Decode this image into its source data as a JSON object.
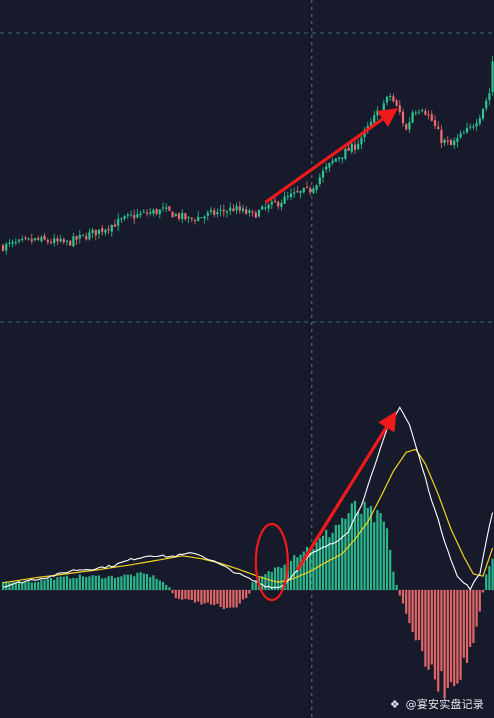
{
  "watermark": {
    "text": "@宴安实盘记录",
    "icon": "diamond-logo-icon"
  },
  "colors": {
    "background": "#171a2b",
    "up": "#2cc593",
    "down": "#f26d6d",
    "dif_line": "#ffffff",
    "dea_line": "#f2d21b",
    "annotation": "#f01a1a",
    "guide": "#7f8aa0",
    "grid_dashed": "#2f7f86"
  },
  "chart_data": [
    {
      "type": "candlestick",
      "panel": "price",
      "grid": false,
      "trend_close": [
        [
          0,
          10.0
        ],
        [
          10,
          10.4
        ],
        [
          20,
          10.2
        ],
        [
          30,
          11.0
        ],
        [
          40,
          11.9
        ],
        [
          50,
          12.3
        ],
        [
          58,
          11.7
        ],
        [
          66,
          12.1
        ],
        [
          72,
          12.4
        ],
        [
          78,
          12.0
        ],
        [
          84,
          12.6
        ],
        [
          90,
          13.2
        ],
        [
          96,
          13.6
        ],
        [
          100,
          14.7
        ],
        [
          104,
          15.6
        ],
        [
          110,
          16.4
        ],
        [
          114,
          17.5
        ],
        [
          118,
          18.8
        ],
        [
          121,
          19.6
        ],
        [
          124,
          18.5
        ],
        [
          126,
          17.4
        ],
        [
          128,
          18.6
        ],
        [
          131,
          18.9
        ],
        [
          134,
          18.0
        ],
        [
          137,
          16.8
        ],
        [
          140,
          16.4
        ],
        [
          143,
          17.0
        ],
        [
          146,
          17.5
        ],
        [
          149,
          18.4
        ],
        [
          152,
          19.8
        ],
        [
          153,
          21.8
        ]
      ],
      "crosshair_x": 96.5,
      "annotation": {
        "type": "arrow",
        "from": [
          82,
          12.8
        ],
        "to": [
          122,
          18.6
        ]
      }
    },
    {
      "type": "macd",
      "panel": "indicator",
      "zero_line": 0,
      "dif": [
        [
          0,
          0.12
        ],
        [
          8,
          0.33
        ],
        [
          14,
          0.44
        ],
        [
          22,
          0.68
        ],
        [
          28,
          0.73
        ],
        [
          34,
          0.83
        ],
        [
          40,
          1.05
        ],
        [
          46,
          1.2
        ],
        [
          52,
          1.15
        ],
        [
          60,
          1.28
        ],
        [
          66,
          0.98
        ],
        [
          72,
          0.64
        ],
        [
          78,
          0.33
        ],
        [
          82,
          0.14
        ],
        [
          86,
          0.08
        ],
        [
          88,
          0.2
        ],
        [
          92,
          0.7
        ],
        [
          96,
          1.22
        ],
        [
          100,
          1.45
        ],
        [
          104,
          1.66
        ],
        [
          108,
          2.04
        ],
        [
          112,
          2.95
        ],
        [
          116,
          4.2
        ],
        [
          120,
          5.55
        ],
        [
          124,
          6.3
        ],
        [
          127,
          5.7
        ],
        [
          130,
          4.6
        ],
        [
          134,
          3.1
        ],
        [
          138,
          1.7
        ],
        [
          142,
          0.45
        ],
        [
          146,
          0.05
        ],
        [
          149,
          0.55
        ],
        [
          151,
          1.7
        ],
        [
          153,
          2.7
        ]
      ],
      "dea": [
        [
          0,
          0.25
        ],
        [
          10,
          0.42
        ],
        [
          20,
          0.56
        ],
        [
          30,
          0.7
        ],
        [
          40,
          0.87
        ],
        [
          50,
          1.06
        ],
        [
          56,
          1.18
        ],
        [
          62,
          1.08
        ],
        [
          68,
          0.92
        ],
        [
          74,
          0.7
        ],
        [
          80,
          0.46
        ],
        [
          84,
          0.32
        ],
        [
          86,
          0.27
        ],
        [
          90,
          0.36
        ],
        [
          96,
          0.64
        ],
        [
          100,
          0.9
        ],
        [
          106,
          1.25
        ],
        [
          110,
          1.75
        ],
        [
          114,
          2.35
        ],
        [
          118,
          3.2
        ],
        [
          122,
          4.1
        ],
        [
          126,
          4.75
        ],
        [
          129,
          4.85
        ],
        [
          132,
          4.35
        ],
        [
          136,
          3.3
        ],
        [
          140,
          2.1
        ],
        [
          144,
          1.15
        ],
        [
          147,
          0.55
        ],
        [
          150,
          0.48
        ],
        [
          153,
          1.45
        ]
      ],
      "histogram_envelope": [
        [
          0,
          0.3
        ],
        [
          10,
          0.3
        ],
        [
          14,
          0.4
        ],
        [
          24,
          0.5
        ],
        [
          34,
          0.48
        ],
        [
          44,
          0.58
        ],
        [
          48,
          0.45
        ],
        [
          52,
          0.1
        ],
        [
          54,
          -0.3
        ],
        [
          60,
          -0.42
        ],
        [
          66,
          -0.55
        ],
        [
          72,
          -0.72
        ],
        [
          74,
          -0.5
        ],
        [
          77,
          -0.15
        ],
        [
          78,
          0.25
        ],
        [
          82,
          0.55
        ],
        [
          86,
          0.85
        ],
        [
          90,
          1.2
        ],
        [
          94,
          1.45
        ],
        [
          98,
          1.65
        ],
        [
          102,
          2.1
        ],
        [
          106,
          2.55
        ],
        [
          110,
          2.95
        ],
        [
          114,
          2.8
        ],
        [
          118,
          2.5
        ],
        [
          120,
          2.2
        ],
        [
          122,
          0.6
        ],
        [
          124,
          -0.2
        ],
        [
          126,
          -0.8
        ],
        [
          130,
          -2.1
        ],
        [
          134,
          -3.1
        ],
        [
          138,
          -3.5
        ],
        [
          140,
          -3.3
        ],
        [
          144,
          -2.8
        ],
        [
          148,
          -1.5
        ],
        [
          150,
          -0.1
        ],
        [
          151,
          0.6
        ],
        [
          153,
          1.2
        ]
      ],
      "crosshair_x": 96.5,
      "annotations": [
        {
          "type": "ellipse",
          "center": [
            84,
            0.0
          ],
          "shape": "vertical-oval"
        },
        {
          "type": "arrow",
          "from": [
            92,
            0.0
          ],
          "to": [
            122,
            6.0
          ]
        }
      ]
    }
  ]
}
